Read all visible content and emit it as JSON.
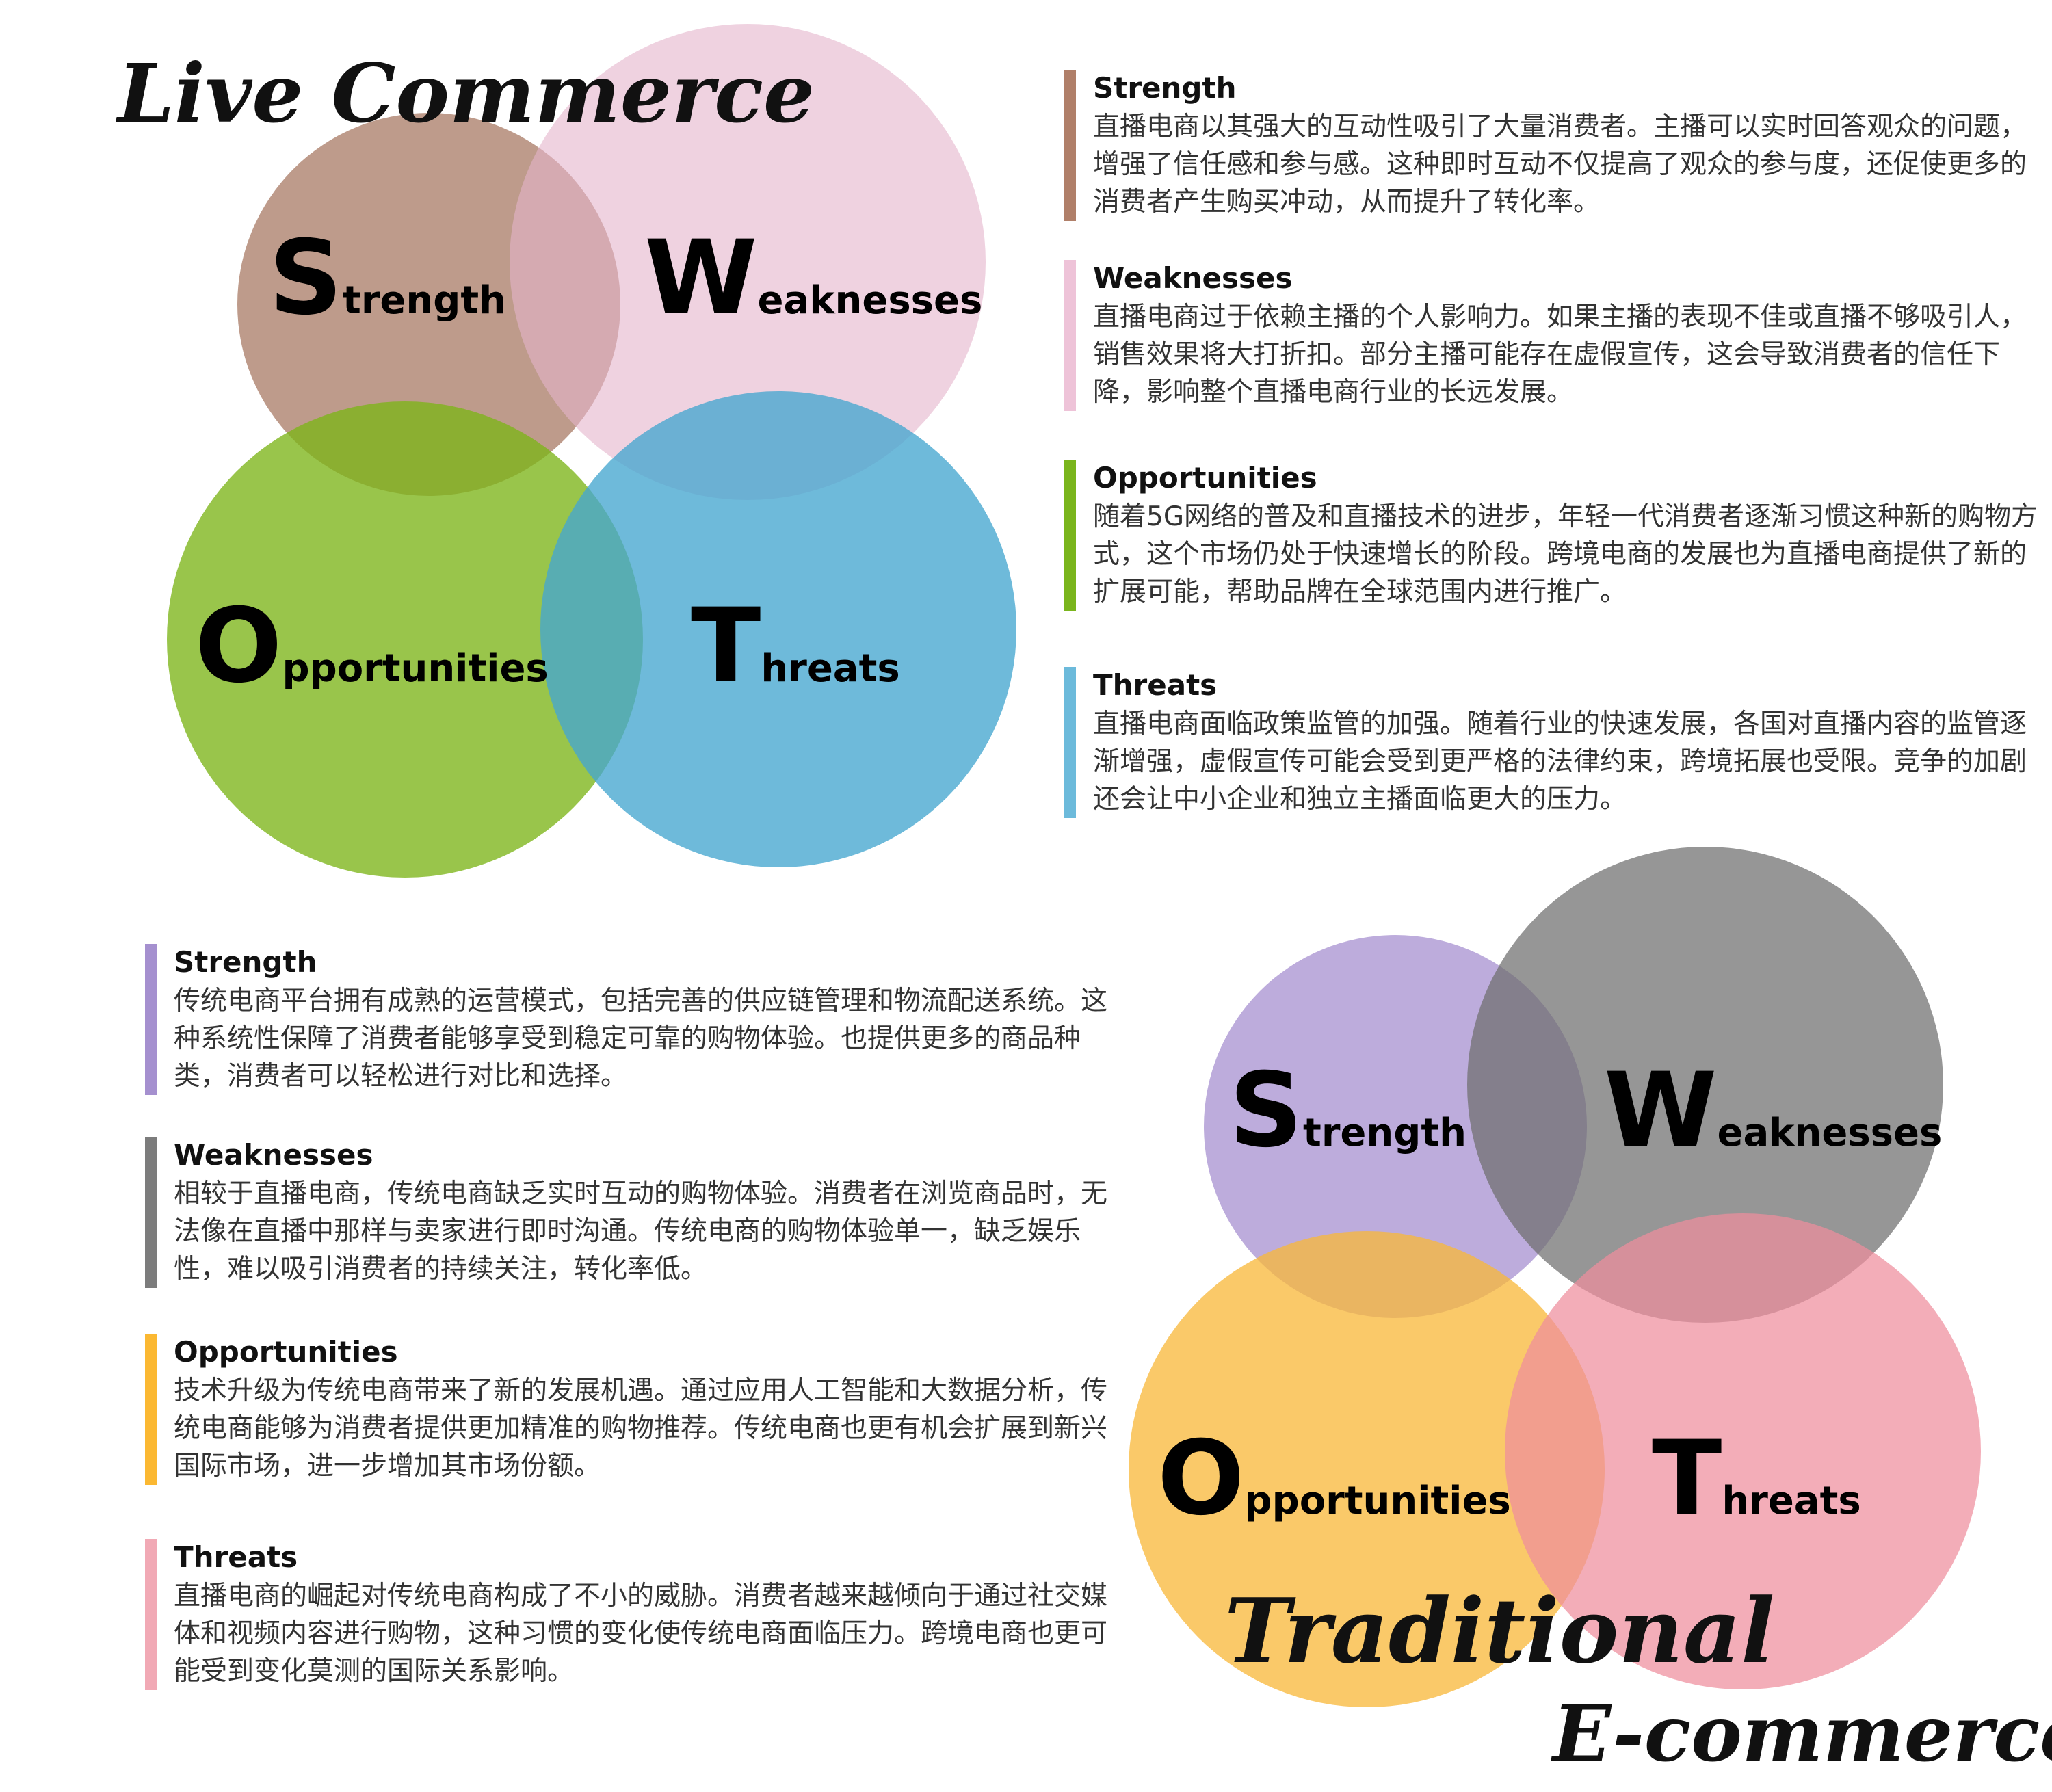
{
  "live_commerce": {
    "title": "Live Commerce",
    "circles": {
      "strength": {
        "initial": "S",
        "rest": "trength",
        "color": "#a3715a"
      },
      "weaknesses": {
        "initial": "W",
        "rest": "eaknesses",
        "color": "#e5b4cc"
      },
      "opportunities": {
        "initial": "O",
        "rest": "pportunities",
        "color": "#7cb518"
      },
      "threats": {
        "initial": "T",
        "rest": "hreats",
        "color": "#45a7d0"
      }
    },
    "items": [
      {
        "heading": "Strength",
        "text": "直播电商以其强大的互动性吸引了大量消费者。主播可以实时回答观众的问题，增强了信任感和参与感。这种即时互动不仅提高了观众的参与度，还促使更多的消费者产生购买冲动，从而提升了转化率。",
        "color": "#b07f69"
      },
      {
        "heading": "Weaknesses",
        "text": "直播电商过于依赖主播的个人影响力。如果主播的表现不佳或直播不够吸引人，销售效果将大打折扣。部分主播可能存在虚假宣传，这会导致消费者的信任下降，影响整个直播电商行业的长远发展。",
        "color": "#eec3d8"
      },
      {
        "heading": "Opportunities",
        "text": "随着5G网络的普及和直播技术的进步，年轻一代消费者逐渐习惯这种新的购物方式，这个市场仍处于快速增长的阶段。跨境电商的发展也为直播电商提供了新的扩展可能，帮助品牌在全球范围内进行推广。",
        "color": "#7ab51d"
      },
      {
        "heading": "Threats",
        "text": "直播电商面临政策监管的加强。随着行业的快速发展，各国对直播内容的监管逐渐增强，虚假宣传可能会受到更严格的法律约束，跨境拓展也受限。竞争的加剧还会让中小企业和独立主播面临更大的压力。",
        "color": "#6cbadb"
      }
    ]
  },
  "traditional": {
    "title_line1": "Traditional",
    "title_line2": "E-commerce",
    "circles": {
      "strength": {
        "initial": "S",
        "rest": "trength",
        "color": "#a48ccf"
      },
      "weaknesses": {
        "initial": "W",
        "rest": "eaknesses",
        "color": "#6e6e6e"
      },
      "opportunities": {
        "initial": "O",
        "rest": "pportunities",
        "color": "#f9b83a"
      },
      "threats": {
        "initial": "T",
        "rest": "hreats",
        "color": "#ef8d9d"
      }
    },
    "items": [
      {
        "heading": "Strength",
        "text": "传统电商平台拥有成熟的运营模式，包括完善的供应链管理和物流配送系统。这种系统性保障了消费者能够享受到稳定可靠的购物体验。也提供更多的商品种类，消费者可以轻松进行对比和选择。",
        "color": "#a590cf"
      },
      {
        "heading": "Weaknesses",
        "text": "相较于直播电商，传统电商缺乏实时互动的购物体验。消费者在浏览商品时，无法像在直播中那样与卖家进行即时沟通。传统电商的购物体验单一，缺乏娱乐性，难以吸引消费者的持续关注，转化率低。",
        "color": "#7c7c7c"
      },
      {
        "heading": "Opportunities",
        "text": "技术升级为传统电商带来了新的发展机遇。通过应用人工智能和大数据分析，传统电商能够为消费者提供更加精准的购物推荐。传统电商也更有机会扩展到新兴国际市场，进一步增加其市场份额。",
        "color": "#fbb832"
      },
      {
        "heading": "Threats",
        "text": "直播电商的崛起对传统电商构成了不小的威胁。消费者越来越倾向于通过社交媒体和视频内容进行购物，这种习惯的变化使传统电商面临压力。跨境电商也更可能受到变化莫测的国际关系影响。",
        "color": "#f1a9b5"
      }
    ]
  }
}
